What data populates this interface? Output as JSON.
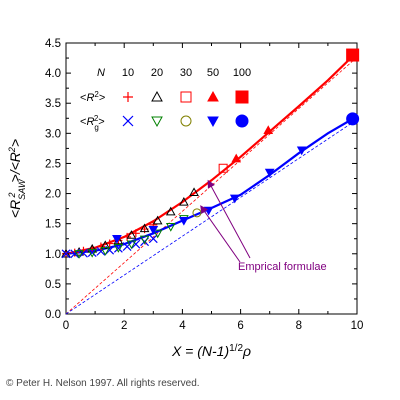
{
  "chart_data": {
    "type": "line",
    "xlabel_display": "X = (N-1)^{1/2} ρ",
    "ylabel_display": "<R_SAW^2>/<R^2>",
    "xlim": [
      0,
      10
    ],
    "ylim": [
      0,
      4.5
    ],
    "x_ticks": [
      0,
      2,
      4,
      6,
      8,
      10
    ],
    "y_ticks": [
      0.0,
      0.5,
      1.0,
      1.5,
      2.0,
      2.5,
      3.0,
      3.5,
      4.0,
      4.5
    ],
    "x_tick_labels": [
      "0",
      "2",
      "4",
      "6",
      "8",
      "10"
    ],
    "y_tick_labels": [
      "0.0",
      "0.5",
      "1.0",
      "1.5",
      "2.0",
      "2.5",
      "3.0",
      "3.5",
      "4.0",
      "4.5"
    ],
    "legend": {
      "header_label": "N",
      "n_values": [
        "10",
        "20",
        "30",
        "50",
        "100"
      ],
      "rows": [
        {
          "label": "<R²>",
          "color": "#ff0000",
          "markers": [
            "plus",
            "triangle-open",
            "square-open",
            "triangle-filled",
            "square-filled"
          ]
        },
        {
          "label": "<Rg²>",
          "color": "#0000ff",
          "alt_colors": [
            "#0000ff",
            "#008000",
            "#808000",
            "#0000ff",
            "#0000ff"
          ],
          "markers": [
            "x",
            "triangle-down-open",
            "circle-open",
            "triangle-down-filled",
            "circle-filled"
          ]
        }
      ]
    },
    "annotation": "Emprical formulae",
    "series": [
      {
        "name": "<R²> N=10",
        "color": "#ff0000",
        "marker": "plus",
        "x": [
          0,
          0.3,
          0.6,
          0.9,
          1.2,
          1.5,
          1.8,
          2.1,
          2.4,
          2.7,
          3.0
        ],
        "y": [
          1.0,
          1.02,
          1.05,
          1.08,
          1.12,
          1.17,
          1.22,
          1.28,
          1.34,
          1.41,
          1.48
        ]
      },
      {
        "name": "<R²> N=20",
        "color": "#000000",
        "marker": "triangle-open",
        "x": [
          0,
          0.45,
          0.9,
          1.35,
          1.8,
          2.25,
          2.7,
          3.15,
          3.6,
          4.05,
          4.4
        ],
        "y": [
          1.0,
          1.03,
          1.08,
          1.14,
          1.22,
          1.31,
          1.42,
          1.55,
          1.7,
          1.86,
          2.02
        ]
      },
      {
        "name": "<R²> N=30",
        "color": "#ff0000",
        "marker": "square-open",
        "x": [
          5.4
        ],
        "y": [
          2.42
        ]
      },
      {
        "name": "<R²> N=50",
        "color": "#ff0000",
        "marker": "triangle-filled",
        "x": [
          5.85,
          6.95
        ],
        "y": [
          2.58,
          3.05
        ]
      },
      {
        "name": "<R²> N=100",
        "color": "#ff0000",
        "marker": "square-filled",
        "x": [
          9.85
        ],
        "y": [
          4.3
        ]
      },
      {
        "name": "<Rg²> N=10",
        "color": "#0000ff",
        "marker": "x",
        "x": [
          0,
          0.3,
          0.6,
          0.9,
          1.2,
          1.5,
          1.8,
          2.1,
          2.4,
          2.7,
          3.0
        ],
        "y": [
          1.0,
          1.0,
          1.01,
          1.02,
          1.04,
          1.06,
          1.09,
          1.12,
          1.16,
          1.2,
          1.25
        ]
      },
      {
        "name": "<Rg²> N=20",
        "color": "#008000",
        "marker": "triangle-down-open",
        "x": [
          0.45,
          0.9,
          1.35,
          1.8,
          2.25,
          2.7,
          3.15,
          3.6,
          4.05
        ],
        "y": [
          1.0,
          1.02,
          1.05,
          1.1,
          1.16,
          1.24,
          1.34,
          1.45,
          1.58
        ]
      },
      {
        "name": "<Rg²> N=30",
        "color": "#808000",
        "marker": "circle-open",
        "x": [
          4.5
        ],
        "y": [
          1.68
        ]
      },
      {
        "name": "<Rg²> N=50",
        "color": "#0000ff",
        "marker": "triangle-down-filled",
        "x": [
          1.75,
          3.0,
          4.05,
          4.9,
          5.8,
          7.0,
          8.1
        ],
        "y": [
          1.25,
          1.4,
          1.55,
          1.72,
          1.92,
          2.35,
          2.72
        ]
      },
      {
        "name": "<Rg²> N=100",
        "color": "#0000ff",
        "marker": "circle-filled",
        "x": [
          9.85
        ],
        "y": [
          3.24
        ]
      }
    ],
    "fit_lines": [
      {
        "name": "red empirical formula",
        "color": "#ff0000",
        "x": [
          0,
          1,
          2,
          3,
          4,
          5,
          6,
          7,
          8,
          9,
          9.85
        ],
        "y": [
          1.0,
          1.1,
          1.28,
          1.54,
          1.86,
          2.22,
          2.61,
          3.03,
          3.45,
          3.88,
          4.28
        ]
      },
      {
        "name": "blue empirical formula",
        "color": "#0000ff",
        "x": [
          0,
          1,
          2,
          3,
          4,
          5,
          6,
          7,
          8,
          9,
          9.85
        ],
        "y": [
          1.0,
          1.05,
          1.16,
          1.34,
          1.55,
          1.76,
          1.98,
          2.31,
          2.67,
          3.0,
          3.24
        ]
      }
    ],
    "asymptotes": [
      {
        "name": "red asymptote",
        "color": "#ff0000",
        "x": [
          0,
          9.85
        ],
        "y": [
          0,
          4.2
        ]
      },
      {
        "name": "blue asymptote",
        "color": "#0000ff",
        "x": [
          0,
          9.85
        ],
        "y": [
          0,
          3.18
        ]
      }
    ]
  },
  "copyright": "© Peter H. Nelson 1997. All rights reserved."
}
